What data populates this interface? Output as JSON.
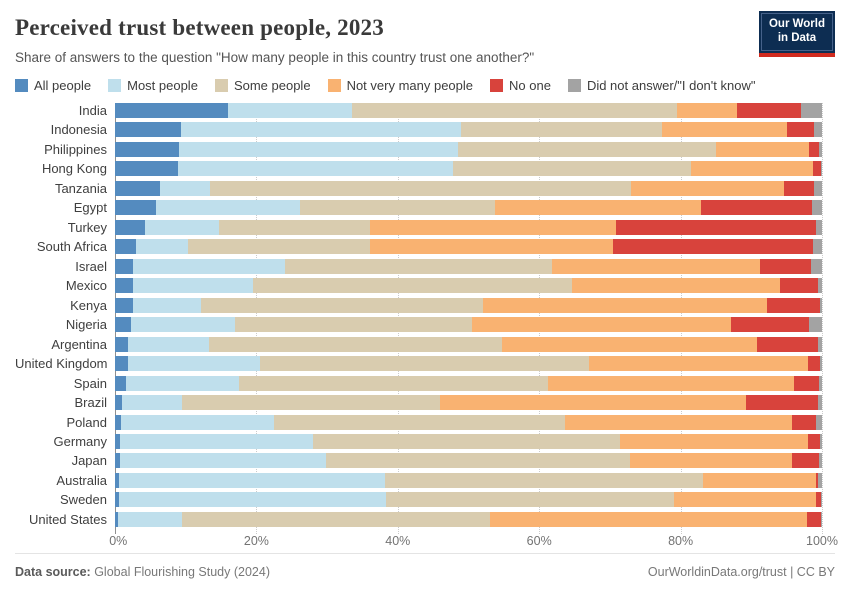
{
  "header": {
    "title": "Perceived trust between people, 2023",
    "subtitle": "Share of answers to the question \"How many people in this country trust one another?\""
  },
  "logo": {
    "line1": "Our World",
    "line2": "in Data",
    "bg_color": "#0d2d52",
    "accent_color": "#d12b1f"
  },
  "footer": {
    "source_label": "Data source:",
    "source_value": " Global Flourishing Study (2024)",
    "right": "OurWorldinData.org/trust | CC BY"
  },
  "chart_data": {
    "type": "bar",
    "orientation": "horizontal",
    "stacked": true,
    "unit": "%",
    "xlim": [
      0,
      100
    ],
    "x_ticks": [
      "0%",
      "20%",
      "40%",
      "60%",
      "80%",
      "100%"
    ],
    "grid": true,
    "legend_position": "top",
    "categories": [
      "India",
      "Indonesia",
      "Philippines",
      "Hong Kong",
      "Tanzania",
      "Egypt",
      "Turkey",
      "South Africa",
      "Israel",
      "Mexico",
      "Kenya",
      "Nigeria",
      "Argentina",
      "United Kingdom",
      "Spain",
      "Brazil",
      "Poland",
      "Germany",
      "Japan",
      "Australia",
      "Sweden",
      "United States"
    ],
    "series": [
      {
        "name": "All people",
        "key": "all-people",
        "color": "#548bbf",
        "values": [
          16,
          9.3,
          9,
          8.9,
          6.3,
          5.8,
          4.2,
          3.0,
          2.5,
          2.5,
          2.5,
          2.3,
          1.8,
          1.9,
          1.5,
          1.0,
          0.8,
          0.7,
          0.7,
          0.5,
          0.5,
          0.4
        ]
      },
      {
        "name": "Most people",
        "key": "most-people",
        "color": "#bfdfec",
        "values": [
          17.5,
          39.7,
          39.5,
          38.9,
          7.2,
          20.3,
          10.5,
          7.3,
          21.5,
          17,
          9.6,
          14.7,
          11.5,
          18.6,
          16,
          8.5,
          21.7,
          27.3,
          29.1,
          37.7,
          37.8,
          9.1
        ]
      },
      {
        "name": "Some people",
        "key": "some-people",
        "color": "#d9ccaf",
        "values": [
          46,
          28.3,
          36.5,
          33.7,
          59.5,
          27.6,
          21.4,
          25.7,
          37.8,
          45.2,
          39.9,
          33.5,
          41.5,
          46.5,
          43.7,
          36.4,
          41.2,
          43.5,
          43.1,
          44.9,
          40.8,
          43.5
        ]
      },
      {
        "name": "Not very many people",
        "key": "not-very-many-people",
        "color": "#f9b271",
        "values": [
          8.5,
          17.7,
          13.2,
          17.3,
          21.6,
          29.2,
          34.8,
          34.5,
          29.4,
          29.3,
          40.2,
          36.7,
          36.0,
          31.0,
          34.9,
          43.4,
          32.1,
          26.5,
          22.9,
          16.1,
          20.1,
          44.9
        ]
      },
      {
        "name": "No one",
        "key": "no-one",
        "color": "#d8433c",
        "values": [
          9,
          3.9,
          1.4,
          1.0,
          4.3,
          15.7,
          28.3,
          28.2,
          7.2,
          5.4,
          7.5,
          10.9,
          8.6,
          1.7,
          3.5,
          10.2,
          3.3,
          1.7,
          3.8,
          0.3,
          0.6,
          2.0
        ]
      },
      {
        "name": "Did not answer/\"I don't know\"",
        "key": "did-not-answer",
        "color": "#a3a3a3",
        "values": [
          3,
          1.1,
          0.4,
          0.2,
          1.1,
          1.4,
          0.8,
          1.3,
          1.6,
          0.6,
          0.3,
          1.9,
          0.6,
          0.3,
          0.4,
          0.5,
          0.9,
          0.3,
          0.4,
          0.5,
          0.2,
          0.1
        ]
      }
    ]
  }
}
